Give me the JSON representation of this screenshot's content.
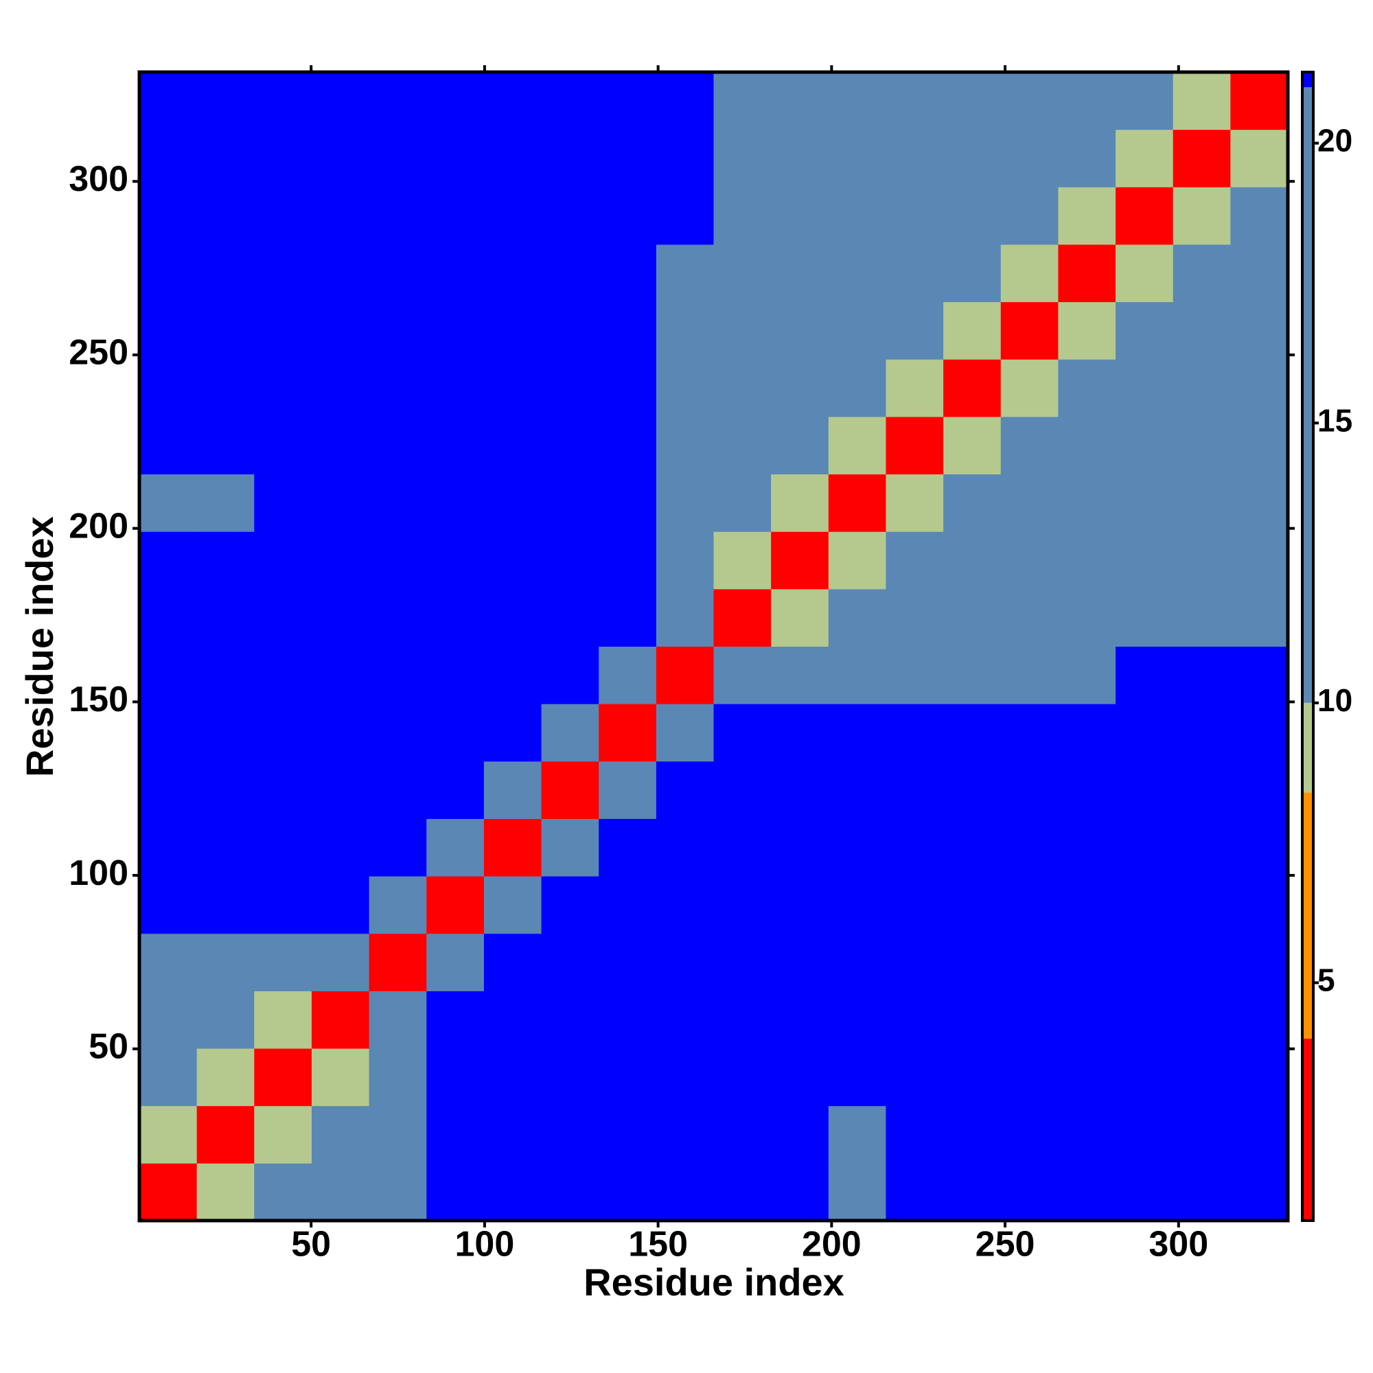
{
  "chart_data": {
    "type": "heatmap",
    "xlabel": "Residue index",
    "ylabel": "Residue index",
    "xlim": [
      0.5,
      331.5
    ],
    "ylim": [
      0.5,
      331.5
    ],
    "xticks": [
      50,
      100,
      150,
      200,
      250,
      300
    ],
    "yticks": [
      50,
      100,
      150,
      200,
      250,
      300
    ],
    "bins": [
      0.5,
      17.05,
      33.6,
      50.15,
      66.7,
      83.25,
      99.8,
      116.35,
      132.9,
      149.45,
      166,
      182.55,
      199.1,
      215.65,
      232.2,
      248.75,
      265.3,
      281.85,
      298.4,
      314.95,
      331.5
    ],
    "z": [
      [
        3,
        9,
        14,
        15,
        17,
        22,
        22,
        22,
        22,
        22,
        22,
        22,
        19,
        22,
        22,
        22,
        22,
        22,
        22,
        22
      ],
      [
        9,
        3,
        9,
        14,
        20,
        22,
        22,
        22,
        22,
        22,
        22,
        22,
        19,
        22,
        22,
        22,
        22,
        22,
        22,
        22
      ],
      [
        14,
        9,
        3,
        9,
        18,
        22,
        22,
        22,
        22,
        22,
        22,
        22,
        22,
        22,
        22,
        22,
        22,
        22,
        22,
        22
      ],
      [
        15,
        14,
        9,
        3,
        12,
        22,
        22,
        22,
        22,
        22,
        22,
        22,
        22,
        22,
        22,
        22,
        22,
        22,
        22,
        22
      ],
      [
        17,
        20,
        18,
        12,
        3,
        12,
        22,
        22,
        22,
        22,
        22,
        22,
        22,
        22,
        22,
        22,
        22,
        22,
        22,
        22
      ],
      [
        22,
        22,
        22,
        22,
        12,
        3,
        12,
        22,
        22,
        22,
        22,
        22,
        22,
        22,
        22,
        22,
        22,
        22,
        22,
        22
      ],
      [
        22,
        22,
        22,
        22,
        22,
        12,
        3,
        12,
        22,
        22,
        22,
        22,
        22,
        22,
        22,
        22,
        22,
        22,
        22,
        22
      ],
      [
        22,
        22,
        22,
        22,
        22,
        22,
        12,
        3,
        14,
        22,
        22,
        22,
        22,
        22,
        22,
        22,
        22,
        22,
        22,
        22
      ],
      [
        22,
        22,
        22,
        22,
        22,
        22,
        22,
        14,
        3,
        14,
        22,
        22,
        22,
        22,
        22,
        22,
        22,
        22,
        22,
        22
      ],
      [
        22,
        22,
        22,
        22,
        22,
        22,
        22,
        22,
        14,
        3,
        10,
        15,
        15,
        15,
        15,
        15,
        18,
        22,
        22,
        22
      ],
      [
        22,
        22,
        22,
        22,
        22,
        22,
        22,
        22,
        22,
        10,
        3,
        9,
        15,
        15,
        15,
        15,
        15,
        15,
        17,
        18
      ],
      [
        22,
        22,
        22,
        22,
        22,
        22,
        22,
        22,
        22,
        15,
        9,
        3,
        9,
        15,
        15,
        15,
        15,
        15,
        15,
        16
      ],
      [
        19,
        19,
        22,
        22,
        22,
        22,
        22,
        22,
        22,
        15,
        15,
        9,
        3,
        9,
        15,
        15,
        15,
        15,
        15,
        15
      ],
      [
        22,
        22,
        22,
        22,
        22,
        22,
        22,
        22,
        22,
        15,
        15,
        15,
        9,
        3,
        9,
        15,
        15,
        15,
        15,
        15
      ],
      [
        22,
        22,
        22,
        22,
        22,
        22,
        22,
        22,
        22,
        15,
        15,
        15,
        15,
        9,
        3,
        9,
        15,
        15,
        15,
        15
      ],
      [
        22,
        22,
        22,
        22,
        22,
        22,
        22,
        22,
        22,
        15,
        15,
        15,
        15,
        15,
        9,
        3,
        9,
        15,
        15,
        15
      ],
      [
        22,
        22,
        22,
        22,
        22,
        22,
        22,
        22,
        22,
        18,
        15,
        15,
        15,
        15,
        15,
        9,
        3,
        9,
        15,
        15
      ],
      [
        22,
        22,
        22,
        22,
        22,
        22,
        22,
        22,
        22,
        22,
        15,
        15,
        15,
        15,
        15,
        15,
        9,
        3,
        9,
        15
      ],
      [
        22,
        22,
        22,
        22,
        22,
        22,
        22,
        22,
        22,
        22,
        17,
        15,
        15,
        15,
        15,
        15,
        15,
        9,
        3,
        9
      ],
      [
        22,
        22,
        22,
        22,
        22,
        22,
        22,
        22,
        22,
        22,
        18,
        16,
        15,
        15,
        15,
        15,
        15,
        15,
        9,
        3
      ]
    ],
    "clim": [
      0.75,
      21.27
    ],
    "cticks": [
      5,
      10,
      15,
      20
    ],
    "breaks": [
      4,
      8.4,
      10,
      21
    ],
    "colors": [
      "#ff0000",
      "#ff9000",
      "#b5c98e",
      "#5b87b5",
      "#0000ff"
    ]
  }
}
